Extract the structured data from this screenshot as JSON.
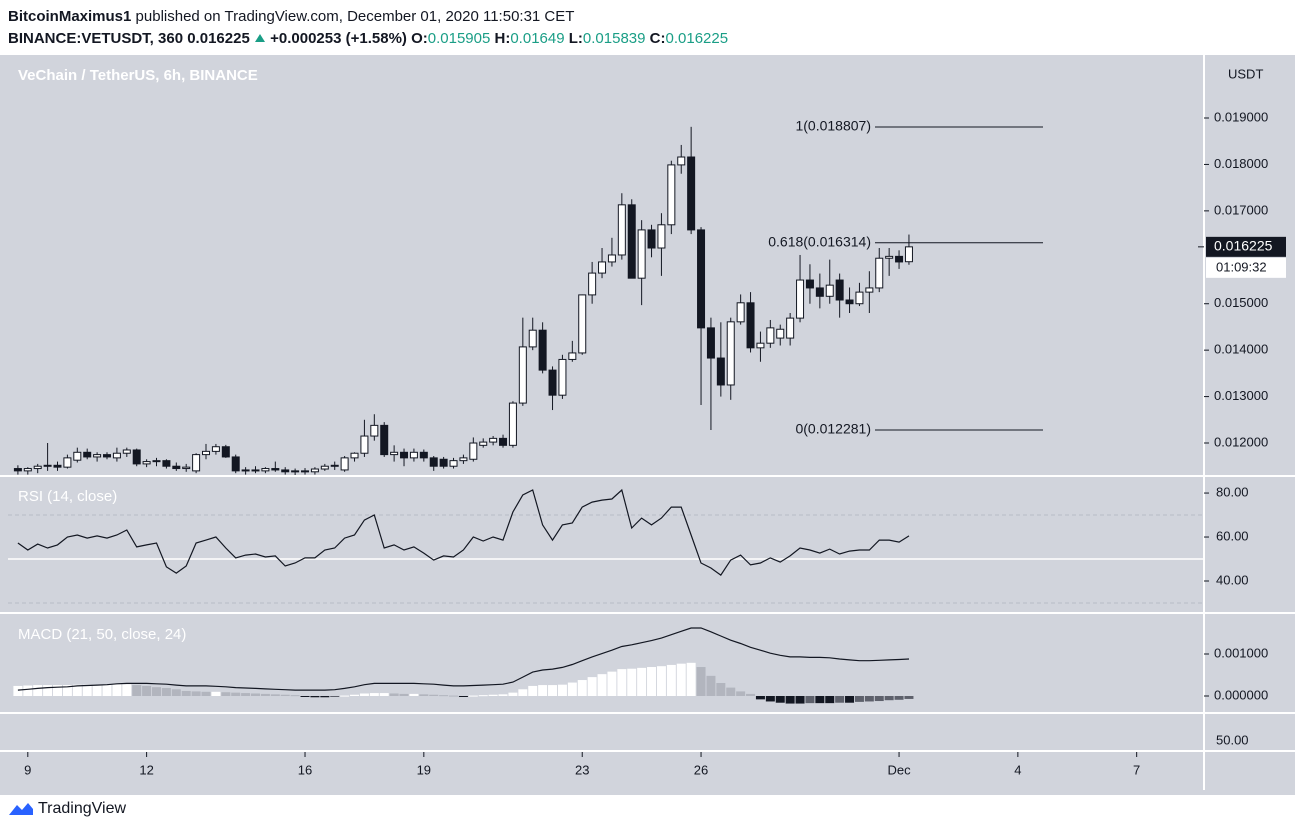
{
  "header": {
    "author": "BitcoinMaximus1",
    "published": "published on TradingView.com, December 01, 2020 11:50:31 CET",
    "symbol": "BINANCE:VETUSDT, 360",
    "change": "+0.000253 (+1.58%)",
    "ohlc_labels": [
      "O:",
      "H:",
      "L:",
      "C:"
    ]
  },
  "chart_data": {
    "type": "candlestick",
    "title": "VeChain / TetherUS, 6h, BINANCE",
    "currency": "USDT",
    "countdown": "01:09:32",
    "open": [
      0.01145,
      0.0114,
      0.01145,
      0.0115,
      0.01152,
      0.01148,
      0.01163,
      0.0118,
      0.0117,
      0.01175,
      0.01168,
      0.01178,
      0.01185,
      0.01155,
      0.0116,
      0.01162,
      0.0115,
      0.01145,
      0.0114,
      0.01175,
      0.01182,
      0.01192,
      0.0117,
      0.0114,
      0.01142,
      0.0114,
      0.01145,
      0.01142,
      0.01138,
      0.0114,
      0.01138,
      0.01144,
      0.0115,
      0.01142,
      0.01168,
      0.01178,
      0.01215,
      0.01238,
      0.01175,
      0.0118,
      0.01168,
      0.0118,
      0.01168,
      0.01165,
      0.0115,
      0.01162,
      0.01165,
      0.01195,
      0.01202,
      0.0121,
      0.01195,
      0.01286,
      0.01407,
      0.01443,
      0.01357,
      0.01303,
      0.0138,
      0.01394,
      0.01519,
      0.01566,
      0.0159,
      0.01605,
      0.01713,
      0.01555,
      0.01659,
      0.0162,
      0.0167,
      0.01799,
      0.01816,
      0.01659,
      0.01448,
      0.01383,
      0.01325,
      0.01461,
      0.01502,
      0.01405,
      0.01415,
      0.01426,
      0.01426,
      0.01469,
      0.01551,
      0.01534,
      0.01516,
      0.01551,
      0.01508,
      0.015,
      0.01525,
      0.01534,
      0.01598,
      0.01602,
      0.015905
    ],
    "high": [
      0.01152,
      0.01148,
      0.01155,
      0.012,
      0.0116,
      0.01175,
      0.0119,
      0.01188,
      0.0118,
      0.0118,
      0.0119,
      0.0119,
      0.01188,
      0.01165,
      0.01168,
      0.01165,
      0.01158,
      0.01155,
      0.01178,
      0.01198,
      0.01198,
      0.01196,
      0.01175,
      0.01148,
      0.0115,
      0.01148,
      0.0116,
      0.01148,
      0.01145,
      0.01146,
      0.01148,
      0.01155,
      0.0116,
      0.01172,
      0.0118,
      0.0125,
      0.01262,
      0.01245,
      0.01195,
      0.01188,
      0.01188,
      0.01186,
      0.01172,
      0.0117,
      0.01168,
      0.01175,
      0.01212,
      0.0121,
      0.01215,
      0.01218,
      0.0129,
      0.0147,
      0.0147,
      0.0146,
      0.01365,
      0.0139,
      0.0142,
      0.0152,
      0.0159,
      0.0162,
      0.01642,
      0.01738,
      0.01725,
      0.0168,
      0.0167,
      0.01695,
      0.01808,
      0.01842,
      0.01881,
      0.01665,
      0.0147,
      0.0146,
      0.0147,
      0.0152,
      0.01525,
      0.0144,
      0.01465,
      0.01455,
      0.0148,
      0.01605,
      0.01585,
      0.01565,
      0.01595,
      0.01565,
      0.01535,
      0.01545,
      0.0157,
      0.0162,
      0.0162,
      0.01615,
      0.01649
    ],
    "low": [
      0.01132,
      0.01132,
      0.01135,
      0.0114,
      0.0114,
      0.01145,
      0.01158,
      0.01165,
      0.0116,
      0.01165,
      0.0116,
      0.0117,
      0.0115,
      0.01148,
      0.0115,
      0.01145,
      0.0114,
      0.01138,
      0.01135,
      0.01165,
      0.01175,
      0.01168,
      0.01135,
      0.01132,
      0.01135,
      0.01135,
      0.01138,
      0.01132,
      0.0113,
      0.01132,
      0.01132,
      0.0114,
      0.01142,
      0.01138,
      0.0116,
      0.0117,
      0.01205,
      0.0117,
      0.0116,
      0.0115,
      0.0116,
      0.0116,
      0.0114,
      0.01145,
      0.01145,
      0.01155,
      0.0116,
      0.0119,
      0.01195,
      0.0119,
      0.0119,
      0.0128,
      0.014,
      0.0135,
      0.01271,
      0.01295,
      0.01375,
      0.0139,
      0.015,
      0.01555,
      0.0158,
      0.01595,
      0.01555,
      0.01497,
      0.016,
      0.0156,
      0.0165,
      0.0178,
      0.0165,
      0.01282,
      0.01228,
      0.013,
      0.01293,
      0.01455,
      0.01395,
      0.01375,
      0.01405,
      0.0141,
      0.0141,
      0.0146,
      0.015,
      0.0149,
      0.015,
      0.0147,
      0.0148,
      0.01495,
      0.0148,
      0.01525,
      0.0156,
      0.01575,
      0.015839
    ],
    "close": [
      0.0114,
      0.01145,
      0.0115,
      0.01152,
      0.01148,
      0.01168,
      0.0118,
      0.0117,
      0.01175,
      0.0117,
      0.01178,
      0.01185,
      0.01155,
      0.0116,
      0.01162,
      0.0115,
      0.01145,
      0.01148,
      0.01175,
      0.01182,
      0.01192,
      0.0117,
      0.0114,
      0.01142,
      0.0114,
      0.01145,
      0.01142,
      0.01138,
      0.0114,
      0.01138,
      0.01144,
      0.0115,
      0.01152,
      0.01168,
      0.01178,
      0.01215,
      0.01238,
      0.01175,
      0.0118,
      0.01168,
      0.0118,
      0.01168,
      0.0115,
      0.0115,
      0.01162,
      0.01168,
      0.012,
      0.01202,
      0.0121,
      0.01195,
      0.01286,
      0.01407,
      0.01443,
      0.01357,
      0.01303,
      0.0138,
      0.01394,
      0.01519,
      0.01566,
      0.0159,
      0.01605,
      0.01713,
      0.01555,
      0.01659,
      0.0162,
      0.0167,
      0.01799,
      0.01816,
      0.01659,
      0.01448,
      0.01383,
      0.01325,
      0.01461,
      0.01502,
      0.01405,
      0.01415,
      0.01448,
      0.01445,
      0.01469,
      0.01551,
      0.01534,
      0.01516,
      0.0154,
      0.01508,
      0.015,
      0.01525,
      0.01534,
      0.01598,
      0.01602,
      0.0159,
      0.016225
    ],
    "ylim": [
      0.011311,
      0.020314
    ],
    "yticks": [
      {
        "value": 0.019,
        "label": "0.019000"
      },
      {
        "value": 0.018,
        "label": "0.018000"
      },
      {
        "value": 0.017,
        "label": "0.017000"
      },
      {
        "value": 0.015,
        "label": "0.015000"
      },
      {
        "value": 0.014,
        "label": "0.014000"
      },
      {
        "value": 0.013,
        "label": "0.013000"
      },
      {
        "value": 0.012,
        "label": "0.012000"
      }
    ],
    "xlim": [
      -1,
      119.7
    ],
    "xticks": [
      {
        "value": 1,
        "label": "9"
      },
      {
        "value": 13,
        "label": "12"
      },
      {
        "value": 29,
        "label": "16"
      },
      {
        "value": 41,
        "label": "19"
      },
      {
        "value": 57,
        "label": "23"
      },
      {
        "value": 69,
        "label": "26"
      },
      {
        "value": 89,
        "label": "Dec"
      },
      {
        "value": 101,
        "label": "4"
      },
      {
        "value": 113,
        "label": "7"
      }
    ],
    "annotations": [
      {
        "value": 0.018807,
        "label": "1(0.018807)"
      },
      {
        "value": 0.016314,
        "label": "0.618(0.016314)"
      },
      {
        "value": 0.012281,
        "label": "0(0.012281)"
      }
    ],
    "rsi": {
      "title": "RSI (14, close)",
      "ylim": [
        25.9,
        87.3
      ],
      "yticks": [
        {
          "value": 80,
          "label": "80.00"
        },
        {
          "value": 60,
          "label": "60.00"
        },
        {
          "value": 40,
          "label": "40.00"
        }
      ],
      "levels": [
        70,
        30
      ],
      "mid": 50,
      "values": [
        57.3,
        54.1,
        56.8,
        55.0,
        56.4,
        60.0,
        60.9,
        59.5,
        60.5,
        59.5,
        60.9,
        63.2,
        55.5,
        56.4,
        57.3,
        46.4,
        43.6,
        46.8,
        57.3,
        58.6,
        60.0,
        55.0,
        50.5,
        51.8,
        52.3,
        50.9,
        51.4,
        46.8,
        48.2,
        50.5,
        50.5,
        54.1,
        55.0,
        59.5,
        60.9,
        67.7,
        70.0,
        55.0,
        56.4,
        54.1,
        55.5,
        52.7,
        49.5,
        51.4,
        50.9,
        54.1,
        60.0,
        58.2,
        60.0,
        58.6,
        71.4,
        79.1,
        81.4,
        65.5,
        58.6,
        65.5,
        66.4,
        73.6,
        75.9,
        76.8,
        77.3,
        81.4,
        64.1,
        68.6,
        65.5,
        68.6,
        73.6,
        73.6,
        60.9,
        48.2,
        45.9,
        42.7,
        49.5,
        51.8,
        47.3,
        48.2,
        50.5,
        48.6,
        51.4,
        55.0,
        54.1,
        52.7,
        54.5,
        52.3,
        53.6,
        54.1,
        54.1,
        58.6,
        58.6,
        57.7,
        60.5
      ]
    },
    "macd": {
      "title": "MACD (21, 50, close, 24)",
      "ylim": [
        -0.000381,
        0.001929
      ],
      "yticks": [
        {
          "value": 0.001,
          "label": "0.001000"
        },
        {
          "value": 0,
          "label": "0.000000"
        }
      ],
      "values": [
        0.00014,
        0.00016,
        0.00018,
        0.0002,
        0.00021,
        0.00022,
        0.00024,
        0.00025,
        0.00026,
        0.00027,
        0.00029,
        0.0003,
        0.0003,
        0.0003,
        0.00029,
        0.00028,
        0.00026,
        0.00024,
        0.00024,
        0.00024,
        0.00023,
        0.00022,
        0.0002,
        0.00019,
        0.00018,
        0.00017,
        0.00016,
        0.00015,
        0.00014,
        0.00014,
        0.00014,
        0.00014,
        0.00015,
        0.00018,
        0.00022,
        0.00027,
        0.0003,
        0.0003,
        0.0003,
        0.0003,
        0.0003,
        0.00029,
        0.00028,
        0.00026,
        0.00024,
        0.00024,
        0.00025,
        0.00026,
        0.00027,
        0.00028,
        0.00033,
        0.00045,
        0.00057,
        0.00062,
        0.00064,
        0.00068,
        0.00075,
        0.00084,
        0.00093,
        0.00101,
        0.00109,
        0.00118,
        0.00122,
        0.00127,
        0.00132,
        0.00138,
        0.00146,
        0.00154,
        0.00162,
        0.00162,
        0.00153,
        0.00143,
        0.00133,
        0.00125,
        0.00116,
        0.00109,
        0.00102,
        0.00097,
        0.00093,
        0.00093,
        0.00092,
        0.00092,
        0.00091,
        0.00088,
        0.00086,
        0.00084,
        0.00084,
        0.00085,
        0.00086,
        0.00087,
        0.00088
      ],
      "histogram": [
        0.00024,
        0.00025,
        0.00026,
        0.00026,
        0.00026,
        0.00026,
        0.00027,
        0.00027,
        0.00027,
        0.00027,
        0.00028,
        0.00028,
        0.00026,
        0.00024,
        0.00021,
        0.00019,
        0.00016,
        0.00012,
        0.00011,
        0.0001,
        0.0001,
        9e-05,
        8e-05,
        7e-05,
        6e-05,
        5e-05,
        4e-05,
        3e-05,
        2e-05,
        -2e-05,
        -3e-05,
        -3e-05,
        -2e-05,
        1e-05,
        3e-05,
        6e-05,
        7e-05,
        7e-05,
        6e-05,
        5e-05,
        5e-05,
        4e-05,
        3e-05,
        2e-05,
        1e-05,
        -1e-05,
        1e-05,
        2e-05,
        3e-05,
        4e-05,
        8e-05,
        0.00016,
        0.00024,
        0.00026,
        0.00026,
        0.00027,
        0.00032,
        0.00038,
        0.00045,
        0.00052,
        0.00058,
        0.00064,
        0.00065,
        0.00067,
        0.00069,
        0.00071,
        0.00074,
        0.00077,
        0.00079,
        0.00069,
        0.00048,
        0.00031,
        0.0002,
        0.00011,
        5e-05,
        -8e-05,
        -0.00013,
        -0.00016,
        -0.00018,
        -0.00018,
        -0.00017,
        -0.00017,
        -0.00017,
        -0.00016,
        -0.00016,
        -0.00014,
        -0.00013,
        -0.00012,
        -0.0001,
        -9e-05,
        -7e-05
      ]
    },
    "pane4_label": "50.00",
    "colors": {
      "background": "#d1d4dc",
      "up": "#ffffff",
      "down": "#131722",
      "wick": "#131722",
      "line": "#131722",
      "hist_up_rising": "#ffffff",
      "hist_up_falling": "#b2b5be",
      "hist_down_falling": "#131722",
      "hist_down_rising": "#5d606b",
      "separator": "#ffffff"
    }
  },
  "footer": {
    "brand": "TradingView"
  }
}
